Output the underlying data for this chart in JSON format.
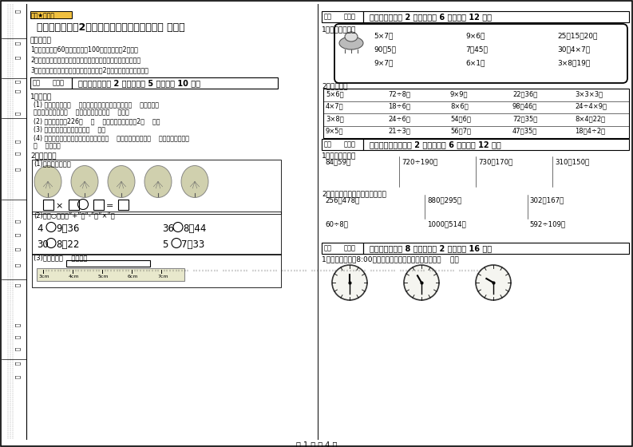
{
  "page_bg": "#ffffff",
  "border_color": "#000000",
  "title": "安徽省实验小学2年级数学下学期综合检测试题 含答案",
  "notice_title": "考试须知：",
  "notices": [
    "1、考试时间：60分钟，满分为100分（含卷面分2分）。",
    "2、请首先按要求在试卷的指定位置填写您的姓名、班级、学号。",
    "3、不要在试卷上乱写乱画，卷面不整洁扠2分，密封线外请勿作答。"
  ],
  "section1_header": "一、填空题（公 2 大题，每题 5 分，共计 10 分）",
  "q1_label": "1、填空。",
  "q1_items": [
    "(1) 我的红领巾有（    ）个角，一把三角尺最多只有（    ）个直角。",
    "教室的黑板表面有（    ）个角，它们都是（    ）角。",
    "(2) 姚明的身高是226（    ）    教室门的高度大约是2（    ）。",
    "(3) 用放大镜看角，角的大小（    ）。",
    "(4) 一块正方形，剪去一个角后，可能是（    ）个角，也可能是（    ）个角，还可能是"
  ],
  "q1_last": "（    ）个角。",
  "q2_label": "2、求一求。",
  "q2_sub1": "(1)、看图填算式：",
  "q2_sub2": "(2)、在○里填上“+”、“-”或“×”。",
  "q2_sub2_items": [
    [
      "4",
      "9＝36",
      "36",
      "8＝44"
    ],
    [
      "30",
      "8＝22",
      "5",
      "7＞33"
    ]
  ],
  "q2_sub3": "(3)、纸条长（    ）厘米。",
  "ruler_labels": [
    "3cm",
    "4cm",
    "5cm",
    "6cm",
    "7cm"
  ],
  "section2_header": "二、计算题（公 2 大题，每题 6 分，共计 12 分）",
  "oral_label": "1、口算我最棒！",
  "oral_problems": [
    [
      "5×7＝",
      "9×6＝",
      "25＋15－20＝"
    ],
    [
      "90－5＝",
      "7＋45＝",
      "30－4×7＝"
    ],
    [
      "9×7＝",
      "6×1＝",
      "3×8＋19＝"
    ]
  ],
  "calc_label": "2、口算题。",
  "calc_rows": [
    [
      "5×6＝",
      "72÷8＝",
      "9×9＝",
      "22＋36＝",
      "3×3×3＝"
    ],
    [
      "4×7＝",
      "18÷6＝",
      "8×6＝",
      "98－46＝",
      "24÷4×9＝"
    ],
    [
      "3×8＝",
      "24÷6＝",
      "54－6＝",
      "72－35＝",
      "8×4－22＝"
    ],
    [
      "9×5＝",
      "21÷3＝",
      "56－7＝",
      "47＋35＝",
      "18－4÷2＝"
    ]
  ],
  "section3_header": "三、列竖式计算（公 2 大题，每题 6 分，共计 12 分）",
  "vertical_label": "1、列竖式计算。",
  "vertical_row1": [
    "84＋59＝",
    "720÷190＝",
    "730＋170＝",
    "310－150＝"
  ],
  "vertical_label2": "2、竖式计算。（第二行要验算）",
  "vertical_row2": [
    "256＋478＝",
    "880－295＝",
    "302－167＝"
  ],
  "vertical_row3": [
    "60÷8＝",
    "1000－514＝",
    "592÷109＝"
  ],
  "section4_header": "四、选一选（公 8 小题，每题 2 分，共计 16 分）",
  "q4_label": "1、我们每天早上8:00上课，下图表示上课前一小时的是（    ）。",
  "page_num": "第 1 页 共 4 页",
  "defen_label": "得分",
  "pingju_label": "评卷人"
}
